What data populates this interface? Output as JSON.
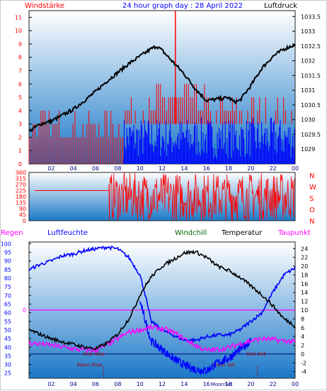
{
  "header": {
    "title": "24 hour graph day : 28 April 2022",
    "left_label": "Windstärke",
    "right_label": "Luftdruck"
  },
  "colors": {
    "wind_speed": "#ff0000",
    "wind_gust": "#0000ff",
    "pressure": "#000000",
    "humidity": "#0000ff",
    "windchill": "#006600",
    "temperature": "#000000",
    "dewpoint": "#ff00ff",
    "rain": "#ff00ff",
    "panel_top": "#ffffff",
    "panel_bottom": "#1a78c8"
  },
  "chart_data": [
    {
      "type": "bar+line",
      "title": "24 hour graph day : 28 April 2022",
      "x_ticks": [
        "02",
        "04",
        "06",
        "08",
        "10",
        "12",
        "14",
        "16",
        "18",
        "20",
        "22",
        "00"
      ],
      "left_axis": {
        "label": "Windstärke",
        "ticks": [
          0,
          1,
          2,
          3,
          4,
          5,
          6,
          7,
          8,
          9,
          10,
          11
        ],
        "ylim": [
          0,
          11.5
        ]
      },
      "right_axis": {
        "label": "Luftdruck",
        "ticks": [
          1029,
          1029.5,
          1030,
          1030.5,
          1031,
          1031.5,
          1032,
          1032.5,
          1033,
          1033.5
        ],
        "ylim": [
          1028.5,
          1033.7
        ]
      },
      "pressure_series": {
        "hours": [
          0,
          1,
          2,
          3,
          4,
          5,
          6,
          7,
          8,
          9,
          10,
          11,
          11.5,
          12,
          13,
          14,
          15,
          16,
          17,
          18,
          18.5,
          19,
          20,
          21,
          22,
          23,
          24
        ],
        "values": [
          1029.6,
          1029.85,
          1029.95,
          1030.15,
          1030.35,
          1030.65,
          1030.95,
          1031.3,
          1031.6,
          1031.9,
          1032.15,
          1032.4,
          1032.5,
          1032.35,
          1031.95,
          1031.55,
          1031.05,
          1030.65,
          1030.7,
          1030.75,
          1030.6,
          1030.65,
          1031.15,
          1031.75,
          1032.15,
          1032.4,
          1032.55
        ]
      },
      "wind_red_bands": [
        {
          "from": 0,
          "to": 8.5,
          "level": 2
        },
        {
          "from": 8.5,
          "to": 11.5,
          "level": 3
        },
        {
          "from": 11.5,
          "to": 16,
          "level": 4
        },
        {
          "from": 16,
          "to": 19,
          "level": 3
        },
        {
          "from": 19,
          "to": 24,
          "level": 3
        }
      ],
      "wind_blue_from_hour": 8.5
    },
    {
      "type": "scatter",
      "title": "Windrichtung",
      "left_ticks": [
        0,
        45,
        90,
        135,
        180,
        225,
        270,
        315,
        360
      ],
      "right_ticks": [
        "N",
        "W",
        "S",
        "O",
        "N"
      ],
      "ylim": [
        0,
        360
      ],
      "segments": [
        {
          "from": 0,
          "to": 7.2,
          "value": 225
        },
        {
          "from": 7.2,
          "to": 24,
          "value": 180
        }
      ]
    },
    {
      "type": "line",
      "legend": [
        "Regen",
        "Luftfeuchte",
        "Windchill",
        "Temperatur",
        "Taupunkt"
      ],
      "x_ticks": [
        "02",
        "04",
        "06",
        "08",
        "10",
        "12",
        "14",
        "16",
        "18",
        "20",
        "22",
        "00"
      ],
      "left_ticks": [
        25,
        30,
        35,
        40,
        45,
        50,
        55,
        60,
        65,
        70,
        75,
        80,
        85,
        90,
        95,
        100
      ],
      "right_ticks": [
        -4,
        -2,
        0,
        2,
        4,
        6,
        8,
        10,
        12,
        14,
        16,
        18,
        20,
        22,
        24
      ],
      "left_ylim": [
        22,
        101
      ],
      "right_ylim": [
        -5.5,
        25.5
      ],
      "rain_marker": "0",
      "annotations": {
        "sun_rise": "Sun Rise",
        "sun_set": "Sun Set",
        "moon_rise": "Moon Rise",
        "moon_set": "Moon Set",
        "moon_set2": "MoonSet"
      },
      "humidity": {
        "hours": [
          0,
          1,
          2,
          3,
          4,
          5,
          6,
          7,
          8,
          9,
          10,
          10.5,
          11,
          12,
          13,
          14,
          15,
          16,
          17,
          18,
          19,
          20,
          21,
          22,
          23,
          24
        ],
        "values": [
          85,
          88,
          90,
          93,
          94,
          96,
          97,
          98,
          97,
          92,
          82,
          70,
          55,
          50,
          47,
          44,
          44,
          46,
          47,
          47,
          50,
          55,
          60,
          72,
          82,
          86
        ]
      },
      "temperature": {
        "hours": [
          0,
          1,
          2,
          3,
          4,
          5,
          6,
          7,
          8,
          9,
          9.5,
          10,
          11,
          12,
          13,
          14,
          15,
          16,
          17,
          18,
          19,
          20,
          21,
          22,
          23,
          24
        ],
        "values": [
          5.5,
          4.5,
          3.5,
          2.8,
          2.2,
          1.6,
          1.2,
          2.4,
          4.5,
          8.0,
          10.5,
          13.5,
          17.5,
          20.0,
          21.5,
          23.0,
          23.3,
          22.0,
          20.0,
          19.0,
          17.5,
          15.5,
          13.5,
          11.0,
          8.0,
          6.5
        ]
      },
      "dewpoint": {
        "hours": [
          0,
          1,
          2,
          3,
          4,
          5,
          6,
          7,
          8,
          9,
          10,
          11,
          12,
          13,
          14,
          15,
          16,
          17,
          18,
          19,
          20,
          21,
          22,
          23,
          24
        ],
        "values": [
          2.5,
          2.3,
          2.0,
          1.6,
          1.2,
          0.9,
          0.9,
          2.0,
          3.5,
          5.0,
          5.5,
          6.0,
          5.8,
          5.0,
          3.5,
          2.0,
          0.8,
          1.0,
          1.5,
          2.3,
          3.0,
          3.5,
          3.3,
          3.0,
          2.8
        ]
      },
      "windchill_min": {
        "hours": [
          10,
          11,
          12,
          13,
          14,
          15,
          16,
          17,
          18,
          19,
          20
        ],
        "values": [
          12,
          3,
          1,
          -1,
          -2.5,
          -3.5,
          -3.8,
          -2,
          -1,
          1,
          3
        ]
      }
    }
  ]
}
